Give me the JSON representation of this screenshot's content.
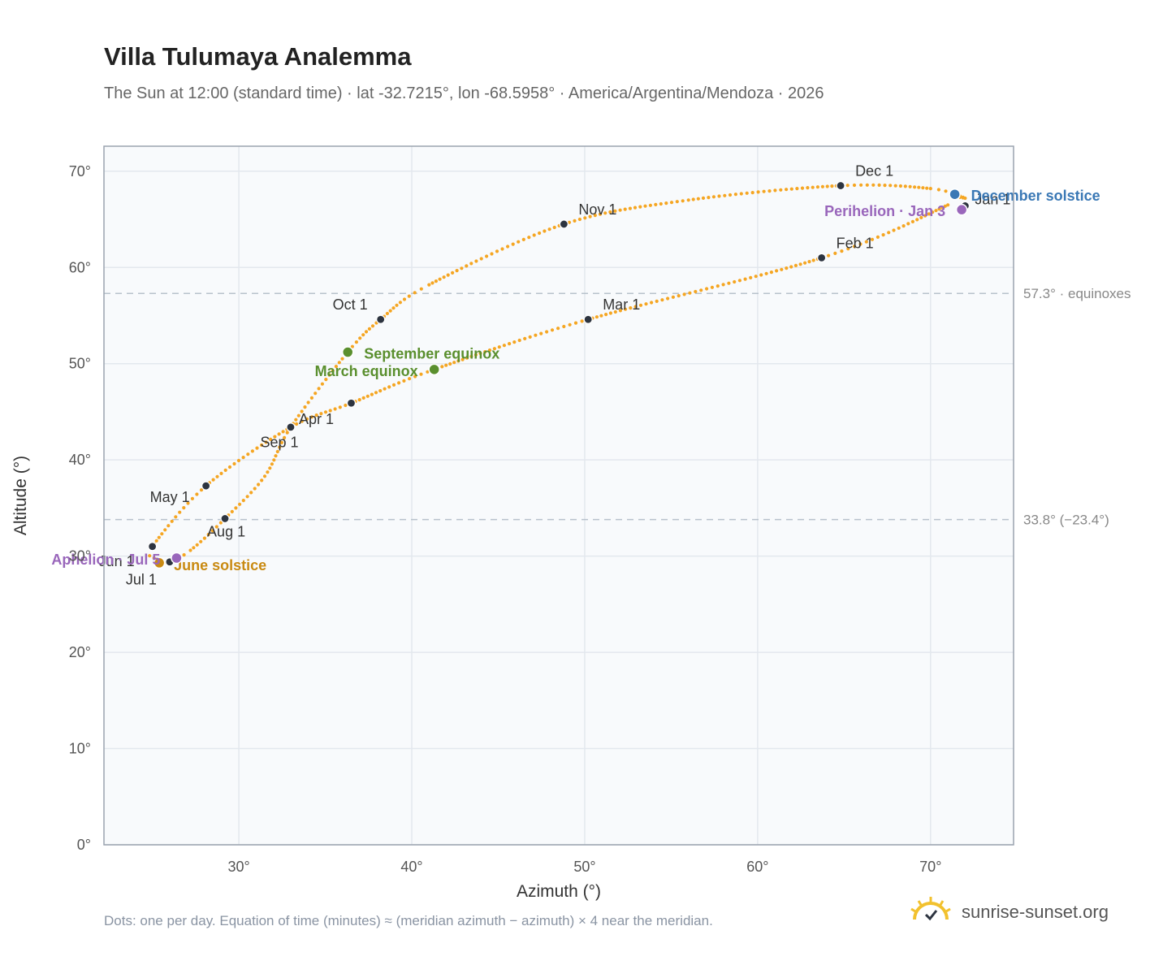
{
  "header": {
    "title": "Villa Tulumaya Analemma",
    "subtitle": "The Sun at 12:00 (standard time) · lat -32.7215°, lon -68.5958° · America/Argentina/Mendoza · 2026"
  },
  "footer": {
    "note": "Dots: one per day. Equation of time (minutes) ≈ (meridian azimuth − azimuth) × 4 near the meridian.",
    "brand": "sunrise-sunset.org",
    "brand_icon": "sun-logo-icon"
  },
  "colors": {
    "curve": "#f5a623",
    "month_marker": "#2d3440",
    "equinox": "#5a8f2e",
    "december_solstice": "#3a78b5",
    "june_solstice": "#c98a12",
    "apsis": "#9966bb",
    "reference_line": "#b8c2cc",
    "plot_bg": "#f8fafc",
    "grid": "#e3e8ee",
    "frame": "#9aa3af"
  },
  "chart_data": {
    "type": "scatter",
    "xlabel": "Azimuth (°)",
    "ylabel": "Altitude (°)",
    "xlim": [
      22.2,
      74.8
    ],
    "ylim": [
      0,
      72.6
    ],
    "xticks": [
      30,
      40,
      50,
      60,
      70
    ],
    "xtick_labels": [
      "30°",
      "40°",
      "50°",
      "60°",
      "70°"
    ],
    "yticks": [
      0,
      10,
      20,
      30,
      40,
      50,
      60,
      70
    ],
    "ytick_labels": [
      "0°",
      "10°",
      "20°",
      "30°",
      "40°",
      "50°",
      "60°",
      "70°"
    ],
    "grid": true,
    "path_anchors": [
      {
        "az": 71.5,
        "alt": 67.4
      },
      {
        "az": 71.0,
        "alt": 66.5
      },
      {
        "az": 63.7,
        "alt": 61.0
      },
      {
        "az": 50.2,
        "alt": 54.6
      },
      {
        "az": 41.3,
        "alt": 49.4
      },
      {
        "az": 36.5,
        "alt": 45.9
      },
      {
        "az": 33.0,
        "alt": 43.4
      },
      {
        "az": 28.1,
        "alt": 37.3
      },
      {
        "az": 25.0,
        "alt": 31.0
      },
      {
        "az": 25.1,
        "alt": 29.8
      },
      {
        "az": 25.4,
        "alt": 29.3
      },
      {
        "az": 26.0,
        "alt": 29.4
      },
      {
        "az": 27.2,
        "alt": 30.6
      },
      {
        "az": 29.2,
        "alt": 33.9
      },
      {
        "az": 31.5,
        "alt": 38.3
      },
      {
        "az": 33.0,
        "alt": 43.4
      },
      {
        "az": 36.3,
        "alt": 51.2
      },
      {
        "az": 38.2,
        "alt": 54.6
      },
      {
        "az": 41.0,
        "alt": 58.2
      },
      {
        "az": 48.8,
        "alt": 64.5
      },
      {
        "az": 56.0,
        "alt": 67.0
      },
      {
        "az": 64.8,
        "alt": 68.5
      },
      {
        "az": 70.0,
        "alt": 68.2
      },
      {
        "az": 72.0,
        "alt": 67.2
      },
      {
        "az": 71.5,
        "alt": 67.4
      }
    ],
    "month_markers": [
      {
        "label": "Jan 1",
        "az": 72.0,
        "alt": 66.4
      },
      {
        "label": "Feb 1",
        "az": 63.7,
        "alt": 61.0
      },
      {
        "label": "Mar 1",
        "az": 50.2,
        "alt": 54.6
      },
      {
        "label": "Apr 1",
        "az": 33.0,
        "alt": 43.4
      },
      {
        "label": "May 1",
        "az": 28.1,
        "alt": 37.3
      },
      {
        "label": "Jun 1",
        "az": 25.0,
        "alt": 31.0
      },
      {
        "label": "Jul 1",
        "az": 26.0,
        "alt": 29.4
      },
      {
        "label": "Aug 1",
        "az": 29.2,
        "alt": 33.9
      },
      {
        "label": "Sep 1",
        "az": 36.5,
        "alt": 45.9
      },
      {
        "label": "Oct 1",
        "az": 38.2,
        "alt": 54.6
      },
      {
        "label": "Nov 1",
        "az": 48.8,
        "alt": 64.5
      },
      {
        "label": "Dec 1",
        "az": 64.8,
        "alt": 68.5
      }
    ],
    "events": [
      {
        "label": "December solstice",
        "az": 71.4,
        "alt": 67.6,
        "color_key": "december_solstice"
      },
      {
        "label": "Perihelion · Jan 3",
        "az": 71.8,
        "alt": 66.0,
        "color_key": "apsis"
      },
      {
        "label": "September equinox",
        "az": 36.3,
        "alt": 51.2,
        "color_key": "equinox"
      },
      {
        "label": "March equinox",
        "az": 41.3,
        "alt": 49.4,
        "color_key": "equinox"
      },
      {
        "label": "June solstice",
        "az": 25.4,
        "alt": 29.3,
        "color_key": "june_solstice"
      },
      {
        "label": "Aphelion · Jul 5",
        "az": 26.4,
        "alt": 29.8,
        "color_key": "apsis"
      }
    ],
    "reference_lines": [
      {
        "alt": 57.3,
        "label": "57.3° · equinoxes"
      },
      {
        "alt": 33.8,
        "label": "33.8° (−23.4°)"
      }
    ]
  }
}
